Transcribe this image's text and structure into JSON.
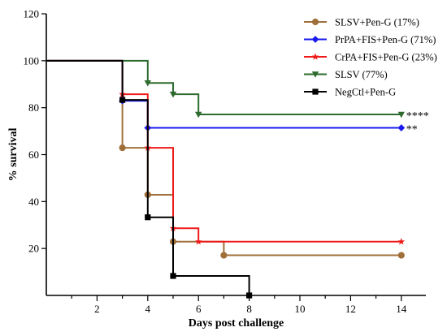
{
  "chart_data": {
    "type": "line",
    "subtype": "kaplan-meier-step",
    "title": "",
    "xlabel": "Days post challenge",
    "ylabel": "% survival",
    "xlim": [
      0,
      15
    ],
    "ylim": [
      0,
      120
    ],
    "x_ticks": [
      2,
      4,
      6,
      8,
      10,
      12,
      14
    ],
    "x_minor_ticks": [
      1,
      3,
      5,
      7,
      9,
      11,
      13
    ],
    "y_ticks": [
      20,
      40,
      60,
      80,
      100,
      120
    ],
    "grid": false,
    "legend_position": "top-right",
    "series": [
      {
        "name": "SLSV+Pen-G (17%)",
        "color": "#a0703a",
        "marker": "circle",
        "points": [
          [
            0,
            100
          ],
          [
            3,
            62.9
          ],
          [
            4,
            42.9
          ],
          [
            5,
            22.9
          ],
          [
            7,
            17.1
          ],
          [
            14,
            17.1
          ]
        ],
        "annotation": ""
      },
      {
        "name": "PrPA+FIS+Pen-G (71%)",
        "color": "#1a1aef",
        "marker": "diamond",
        "points": [
          [
            0,
            100
          ],
          [
            3,
            82.9
          ],
          [
            4,
            71.4
          ],
          [
            14,
            71.4
          ]
        ],
        "annotation": "**"
      },
      {
        "name": "CrPA+FIS+Pen-G (23%)",
        "color": "#ef1a1a",
        "marker": "star",
        "points": [
          [
            0,
            100
          ],
          [
            3,
            85.7
          ],
          [
            4,
            62.9
          ],
          [
            5,
            28.6
          ],
          [
            6,
            22.9
          ],
          [
            14,
            22.9
          ]
        ],
        "annotation": ""
      },
      {
        "name": "SLSV (77%)",
        "color": "#2e6b2e",
        "marker": "triangle-down",
        "points": [
          [
            0,
            100
          ],
          [
            4,
            90.5
          ],
          [
            5,
            85.7
          ],
          [
            6,
            77.1
          ],
          [
            14,
            77.1
          ]
        ],
        "annotation": "****"
      },
      {
        "name": "NegCtl+Pen-G",
        "color": "#000000",
        "marker": "square",
        "points": [
          [
            0,
            100
          ],
          [
            3,
            83.3
          ],
          [
            4,
            33.3
          ],
          [
            5,
            8.3
          ],
          [
            8,
            0
          ]
        ],
        "annotation": ""
      }
    ]
  }
}
